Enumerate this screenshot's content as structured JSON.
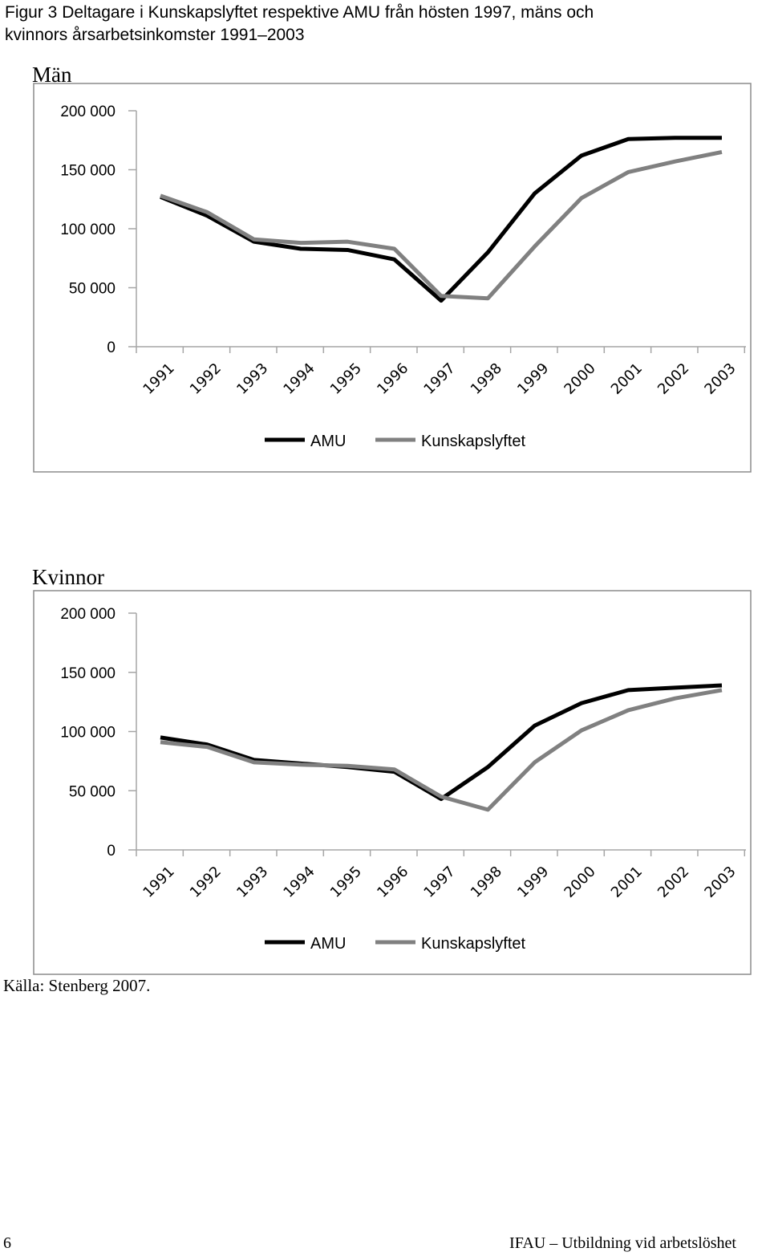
{
  "figure": {
    "title_line1": "Figur 3 Deltagare i Kunskapslyftet respektive AMU från hösten 1997, mäns och",
    "title_line2": "kvinnors årsarbetsinkomster 1991–2003"
  },
  "source": "Källa: Stenberg 2007.",
  "footer": {
    "page_number": "6",
    "publication": "IFAU – Utbildning vid arbetslöshet"
  },
  "colors": {
    "AMU": "#000000",
    "Kunskapslyftet": "#808080"
  },
  "chart_data": [
    {
      "type": "line",
      "title": "Män",
      "categories": [
        "1991",
        "1992",
        "1993",
        "1994",
        "1995",
        "1996",
        "1997",
        "1998",
        "1999",
        "2000",
        "2001",
        "2002",
        "2003"
      ],
      "yticks": [
        "0",
        "50 000",
        "100 000",
        "150 000",
        "200 000"
      ],
      "ylim": [
        0,
        200000
      ],
      "legend_position": "bottom",
      "grid": false,
      "series": [
        {
          "name": "AMU",
          "values": [
            127000,
            111000,
            89000,
            83000,
            82000,
            74000,
            39000,
            80000,
            130000,
            162000,
            176000,
            177000,
            177000
          ]
        },
        {
          "name": "Kunskapslyftet",
          "values": [
            128000,
            114000,
            91000,
            88000,
            89000,
            83000,
            43000,
            41000,
            85000,
            126000,
            148000,
            157000,
            165000
          ]
        }
      ]
    },
    {
      "type": "line",
      "title": "Kvinnor",
      "categories": [
        "1991",
        "1992",
        "1993",
        "1994",
        "1995",
        "1996",
        "1997",
        "1998",
        "1999",
        "2000",
        "2001",
        "2002",
        "2003"
      ],
      "yticks": [
        "0",
        "50 000",
        "100 000",
        "150 000",
        "200 000"
      ],
      "ylim": [
        0,
        200000
      ],
      "legend_position": "bottom",
      "grid": false,
      "series": [
        {
          "name": "AMU",
          "values": [
            95000,
            89000,
            76000,
            73000,
            70000,
            66000,
            43000,
            70000,
            105000,
            124000,
            135000,
            137000,
            139000
          ]
        },
        {
          "name": "Kunskapslyftet",
          "values": [
            91000,
            87000,
            74000,
            72000,
            71000,
            68000,
            45000,
            34000,
            74000,
            101000,
            118000,
            128000,
            135000
          ]
        }
      ]
    }
  ]
}
